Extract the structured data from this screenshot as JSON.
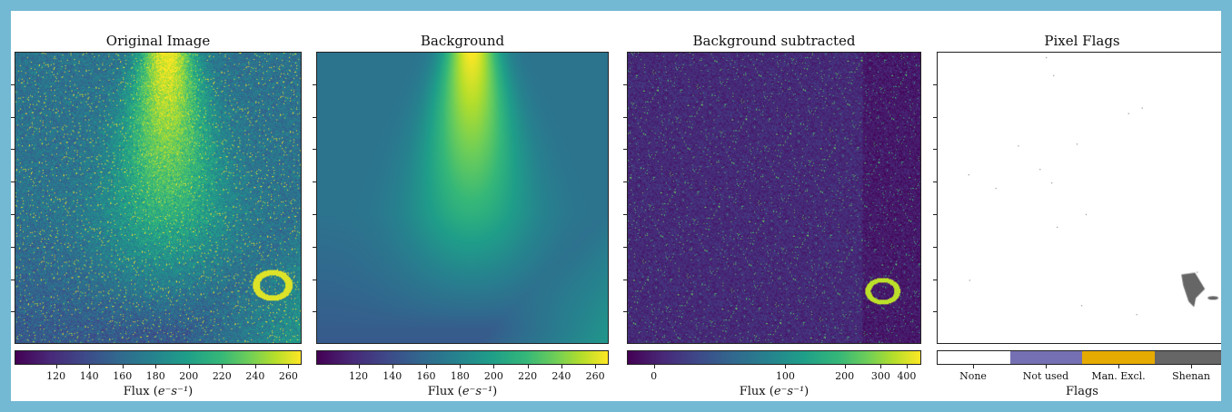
{
  "chart_data": [
    {
      "type": "heatmap",
      "title": "Original Image",
      "colormap": "viridis",
      "colorbar": {
        "label_prefix": "Flux (",
        "label_unit": "e⁻s⁻¹",
        "label_suffix": ")",
        "range": [
          95,
          268
        ],
        "ticks": [
          120,
          140,
          160,
          180,
          200,
          220,
          240,
          260
        ],
        "tick_labels": [
          "120",
          "140",
          "160",
          "180",
          "200",
          "220",
          "240",
          "260"
        ]
      }
    },
    {
      "type": "heatmap",
      "title": "Background",
      "colormap": "viridis",
      "colorbar": {
        "label_prefix": "Flux (",
        "label_unit": "e⁻s⁻¹",
        "label_suffix": ")",
        "range": [
          95,
          268
        ],
        "ticks": [
          120,
          140,
          160,
          180,
          200,
          220,
          240,
          260
        ],
        "tick_labels": [
          "120",
          "140",
          "160",
          "180",
          "200",
          "220",
          "240",
          "260"
        ]
      }
    },
    {
      "type": "heatmap",
      "title": "Background subtracted",
      "colormap": "viridis",
      "colorbar": {
        "label_prefix": "Flux (",
        "label_unit": "e⁻s⁻¹",
        "label_suffix": ")",
        "scale": "asinh",
        "ticks": [
          0,
          100,
          200,
          300,
          400
        ],
        "tick_labels": [
          "0",
          "100",
          "200",
          "300",
          "400"
        ]
      }
    },
    {
      "type": "heatmap",
      "title": "Pixel Flags",
      "colormap": "categorical",
      "colorbar": {
        "label": "Flags",
        "categories": [
          {
            "name": "None",
            "color": "#ffffff"
          },
          {
            "name": "Not used",
            "color": "#7570b3"
          },
          {
            "name": "Man. Excl.",
            "color": "#e6ab02"
          },
          {
            "name": "Shenan",
            "color": "#666666"
          }
        ]
      }
    }
  ]
}
